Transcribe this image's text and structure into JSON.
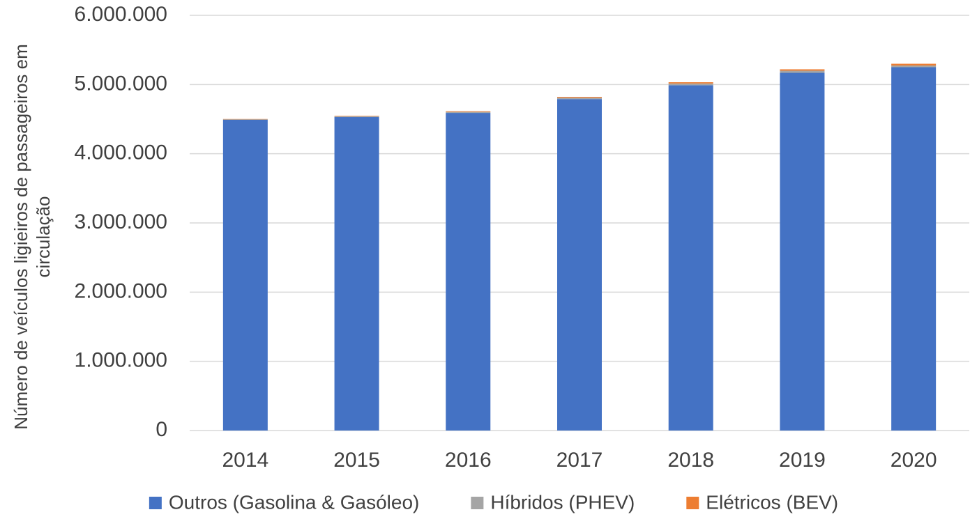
{
  "chart_data": {
    "type": "stacked_bar",
    "y_label": [
      "Número de  veículos ligieiros de passageiros em",
      "circulação"
    ],
    "categories": [
      "2014",
      "2015",
      "2016",
      "2017",
      "2018",
      "2019",
      "2020"
    ],
    "series": [
      {
        "name": "Outros (Gasolina & Gasóleo)",
        "color": "#4472c4",
        "values": [
          4490000,
          4530000,
          4590000,
          4790000,
          4990000,
          5170000,
          5250000
        ]
      },
      {
        "name": "Híbridos (PHEV)",
        "color": "#a5a5a5",
        "values": [
          8000,
          10000,
          15000,
          20000,
          25000,
          30000,
          25000
        ]
      },
      {
        "name": "Elétricos (BEV)",
        "color": "#ed7d31",
        "values": [
          4000,
          6000,
          9000,
          12000,
          18000,
          20000,
          25000
        ]
      }
    ],
    "ylim": [
      0,
      6000000
    ],
    "yticks": [
      0,
      {
        "value": 1000000,
        "label": "1.000.000"
      },
      {
        "value": 2000000,
        "label": "2.000.000"
      },
      {
        "value": 3000000,
        "label": "3.000.000"
      },
      {
        "value": 4000000,
        "label": "4.000.000"
      },
      {
        "value": 5000000,
        "label": "5.000.000"
      },
      {
        "value": 6000000,
        "label": "6.000.000"
      }
    ],
    "grid": true,
    "legend": "bottom"
  }
}
